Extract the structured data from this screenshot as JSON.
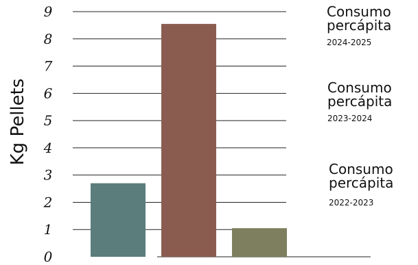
{
  "chart_data": {
    "type": "bar",
    "categories": [
      "2022-2023",
      "2023-2024",
      "2024-2025"
    ],
    "values": [
      2.7,
      8.55,
      1.05
    ],
    "colors": [
      "#5b7d7b",
      "#8a5c50",
      "#7d7f5e"
    ],
    "ylabel": "Kg Pellets",
    "yticks": [
      "0",
      "1",
      "2",
      "3",
      "4",
      "5",
      "6",
      "7",
      "8",
      "9"
    ],
    "ylim": [
      0,
      9
    ],
    "grid": true,
    "legend": [
      {
        "title_line1": "Consumo",
        "title_line2": "percápita",
        "period": "2024-2025"
      },
      {
        "title_line1": "Consumo",
        "title_line2": "percápita",
        "period": "2023-2024"
      },
      {
        "title_line1": "Consumo",
        "title_line2": "percápita",
        "period": "2022-2023"
      }
    ]
  }
}
